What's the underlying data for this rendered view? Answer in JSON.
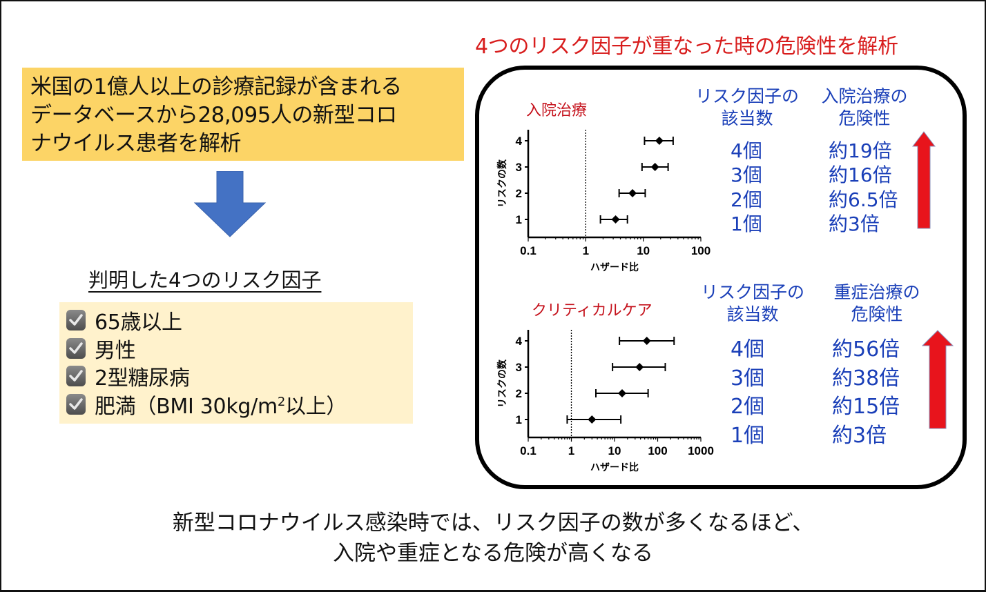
{
  "intro": {
    "text": "米国の1億人以上の診療記録が含まれる\nデータベースから28,095人の新型コロ\nナウイルス患者を解析"
  },
  "flow_arrow": {
    "icon": "down-arrow-icon",
    "color": "#4472c4"
  },
  "factors": {
    "title": "判明した4つのリスク因子",
    "items": [
      {
        "label": "65歳以上"
      },
      {
        "label": "男性"
      },
      {
        "label": "2型糖尿病"
      },
      {
        "label_pre": "肥満（BMI 30kg/m",
        "label_sup": "2",
        "label_post": "以上）"
      }
    ],
    "check_icon": "checked-box-icon"
  },
  "right_title": "4つのリスク因子が重なった時の危険性を解析",
  "hospitalization": {
    "chart_title": "入院治療",
    "table": {
      "col1_header": "リスク因子の\n該当数",
      "col2_header": "入院治療の\n危険性",
      "rows": [
        {
          "count": "4個",
          "risk": "約19倍"
        },
        {
          "count": "3個",
          "risk": "約16倍"
        },
        {
          "count": "2個",
          "risk": "約6.5倍"
        },
        {
          "count": "1個",
          "risk": "約3倍"
        }
      ]
    }
  },
  "critical_care": {
    "chart_title": "クリティカルケア",
    "table": {
      "col1_header": "リスク因子の\n該当数",
      "col2_header": "重症治療の\n危険性",
      "rows": [
        {
          "count": "4個",
          "risk": "約56倍"
        },
        {
          "count": "3個",
          "risk": "約38倍"
        },
        {
          "count": "2個",
          "risk": "約15倍"
        },
        {
          "count": "1個",
          "risk": "約3倍"
        }
      ]
    }
  },
  "conclusion": "新型コロナウイルス感染時では、リスク因子の数が多くなるほど、\n入院や重症となる危険が高くなる",
  "colors": {
    "intro_bg": "#fcd466",
    "factors_bg": "#fff2cc",
    "title_red": "#d81d1d",
    "table_blue": "#1a3fb8",
    "arrow_red": "#e8141c",
    "arrow_blue": "#4472c4"
  },
  "chart_data": [
    {
      "type": "scatter",
      "subtype": "forest-plot",
      "title": "入院治療",
      "xlabel": "ハザード比",
      "ylabel": "リスクの数",
      "xscale": "log",
      "xlim": [
        0.1,
        100
      ],
      "xticks": [
        "0.1",
        "1",
        "10",
        "100"
      ],
      "yticks": [
        "1",
        "2",
        "3",
        "4"
      ],
      "reference_line_x": 1,
      "series": [
        {
          "name": "hazard_ratio",
          "categories": [
            "1",
            "2",
            "3",
            "4"
          ],
          "values": [
            3.3,
            6.5,
            16,
            19
          ],
          "ci_low": [
            1.8,
            3.8,
            9.5,
            10.5
          ],
          "ci_high": [
            5.3,
            10.8,
            27,
            33
          ]
        }
      ],
      "grid": false
    },
    {
      "type": "scatter",
      "subtype": "forest-plot",
      "title": "クリティカルケア",
      "xlabel": "ハザード比",
      "ylabel": "リスクの数",
      "xscale": "log",
      "xlim": [
        0.1,
        1000
      ],
      "xticks": [
        "0.1",
        "1",
        "10",
        "100",
        "1000"
      ],
      "yticks": [
        "1",
        "2",
        "3",
        "4"
      ],
      "reference_line_x": 1,
      "series": [
        {
          "name": "hazard_ratio",
          "categories": [
            "1",
            "2",
            "3",
            "4"
          ],
          "values": [
            3,
            15,
            38,
            56
          ],
          "ci_low": [
            0.8,
            3.7,
            9,
            13
          ],
          "ci_high": [
            14,
            60,
            150,
            240
          ]
        }
      ],
      "grid": false
    }
  ]
}
